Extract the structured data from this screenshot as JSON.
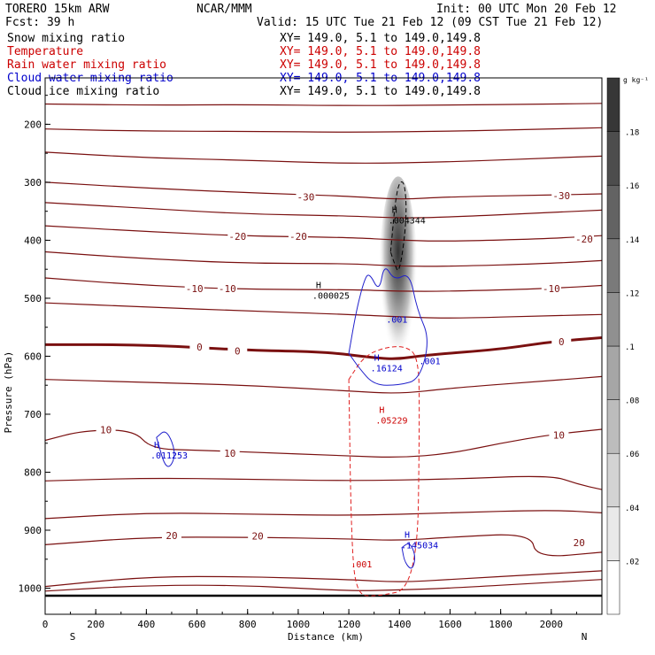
{
  "header": {
    "model": "TORERO  15km ARW",
    "center": "NCAR/MMM",
    "init": "Init: 00 UTC Mon 20 Feb 12",
    "fcst": "Fcst:   39 h",
    "valid": "Valid: 15 UTC Tue 21 Feb 12 (09 CST Tue 21 Feb 12)"
  },
  "fields": [
    {
      "name": "Snow mixing ratio",
      "color": "#000000",
      "xy": "XY= 149.0,  5.1 to 149.0,149.8"
    },
    {
      "name": "Temperature",
      "color": "#cc0000",
      "xy": "XY= 149.0,  5.1 to 149.0,149.8"
    },
    {
      "name": "Rain water mixing ratio",
      "color": "#cc0000",
      "xy": "XY= 149.0,  5.1 to 149.0,149.8"
    },
    {
      "name": "Cloud water mixing ratio",
      "color": "#0000cc",
      "xy": "XY= 149.0,  5.1 to 149.0,149.8"
    },
    {
      "name": "Cloud ice mixing ratio",
      "color": "#000000",
      "xy": "XY= 149.0,  5.1 to 149.0,149.8"
    }
  ],
  "chart_data": {
    "type": "contour",
    "xlabel": "Distance (km)",
    "ylabel": "Pressure (hPa)",
    "xlim": [
      0,
      2200
    ],
    "ylim": [
      1045,
      120
    ],
    "y_scale": "linear (pressure, inverted)",
    "x_ticks": [
      0,
      200,
      400,
      600,
      800,
      1000,
      1200,
      1400,
      1600,
      1800,
      2000
    ],
    "y_ticks": [
      200,
      300,
      400,
      500,
      600,
      700,
      800,
      900,
      1000
    ],
    "end_labels": {
      "left": "S",
      "right": "N"
    },
    "colorbar": {
      "unit": "g kg⁻¹",
      "ticks": [
        ".02",
        ".04",
        ".06",
        ".08",
        ".1",
        ".12",
        ".14",
        ".16",
        ".18"
      ],
      "levels": [
        0,
        0.02,
        0.04,
        0.06,
        0.08,
        0.1,
        0.12,
        0.14,
        0.16,
        0.18,
        0.2
      ]
    },
    "temperature_labels": [
      {
        "text": "-30",
        "x": 1030,
        "p": 325
      },
      {
        "text": "-30",
        "x": 2040,
        "p": 323
      },
      {
        "text": "-20",
        "x": 760,
        "p": 393
      },
      {
        "text": "-20",
        "x": 1000,
        "p": 393
      },
      {
        "text": "-20",
        "x": 2130,
        "p": 398
      },
      {
        "text": "-10",
        "x": 590,
        "p": 483
      },
      {
        "text": "-10",
        "x": 720,
        "p": 483
      },
      {
        "text": "-10",
        "x": 2000,
        "p": 483
      },
      {
        "text": "0",
        "x": 610,
        "p": 584
      },
      {
        "text": "0",
        "x": 760,
        "p": 591
      },
      {
        "text": "0",
        "x": 2040,
        "p": 575
      },
      {
        "text": "10",
        "x": 240,
        "p": 727
      },
      {
        "text": "10",
        "x": 730,
        "p": 767
      },
      {
        "text": "10",
        "x": 2030,
        "p": 736
      },
      {
        "text": "20",
        "x": 500,
        "p": 909
      },
      {
        "text": "20",
        "x": 840,
        "p": 910
      },
      {
        "text": "20",
        "x": 2110,
        "p": 921
      }
    ],
    "maxima_labels": [
      {
        "letter": "H",
        "value": ".004344",
        "x": 1370,
        "p": 365,
        "color": "#000000"
      },
      {
        "letter": "H",
        "value": ".000025",
        "x": 1070,
        "p": 495,
        "color": "#000000"
      },
      {
        "letter": "H",
        "value": ".16124",
        "x": 1300,
        "p": 620,
        "color": "#0000cc"
      },
      {
        "letter": "H",
        "value": ".05229",
        "x": 1320,
        "p": 710,
        "color": "#cc0000"
      },
      {
        "letter": "H",
        "value": ".011253",
        "x": 430,
        "p": 770,
        "color": "#0000cc"
      },
      {
        "letter": "H",
        "value": ".145034",
        "x": 1420,
        "p": 925,
        "color": "#0000cc"
      }
    ],
    "contour_value_labels": [
      {
        "text": ".001",
        "x": 1390,
        "p": 536,
        "color": "#0000cc"
      },
      {
        "text": ".001",
        "x": 1520,
        "p": 608,
        "color": "#0000cc"
      },
      {
        "text": ".001",
        "x": 1250,
        "p": 958,
        "color": "#cc0000"
      }
    ],
    "temperature_contours": [
      {
        "level": -50,
        "x": [
          0,
          400,
          800,
          1200,
          1600,
          2000,
          2200
        ],
        "p": [
          165,
          167,
          166,
          168,
          167,
          165,
          164
        ]
      },
      {
        "level": -40,
        "x": [
          0,
          400,
          800,
          1200,
          1600,
          2000,
          2200
        ],
        "p": [
          208,
          212,
          212,
          214,
          212,
          208,
          206
        ]
      },
      {
        "level": -35,
        "x": [
          0,
          400,
          800,
          1200,
          1600,
          2000,
          2200
        ],
        "p": [
          248,
          258,
          262,
          268,
          265,
          258,
          255
        ]
      },
      {
        "level": -30,
        "x": [
          0,
          400,
          800,
          1200,
          1400,
          1600,
          2000,
          2200
        ],
        "p": [
          300,
          310,
          318,
          324,
          330,
          325,
          322,
          320
        ]
      },
      {
        "level": -25,
        "x": [
          0,
          400,
          800,
          1200,
          1400,
          1600,
          2000,
          2200
        ],
        "p": [
          335,
          345,
          355,
          358,
          362,
          360,
          352,
          348
        ]
      },
      {
        "level": -20,
        "x": [
          0,
          400,
          800,
          1200,
          1400,
          1600,
          2000,
          2200
        ],
        "p": [
          375,
          385,
          393,
          395,
          400,
          402,
          397,
          392
        ]
      },
      {
        "level": -15,
        "x": [
          0,
          400,
          800,
          1200,
          1400,
          1600,
          2000,
          2200
        ],
        "p": [
          420,
          432,
          440,
          440,
          445,
          445,
          440,
          435
        ]
      },
      {
        "level": -10,
        "x": [
          0,
          400,
          800,
          1200,
          1400,
          1600,
          2000,
          2200
        ],
        "p": [
          465,
          478,
          485,
          485,
          488,
          488,
          483,
          478
        ]
      },
      {
        "level": -5,
        "x": [
          0,
          400,
          800,
          1200,
          1400,
          1600,
          2000,
          2200
        ],
        "p": [
          508,
          515,
          522,
          528,
          532,
          535,
          530,
          528
        ]
      },
      {
        "level": 0,
        "x": [
          0,
          400,
          800,
          1100,
          1300,
          1400,
          1500,
          1800,
          2000,
          2200
        ],
        "p": [
          580,
          580,
          590,
          592,
          603,
          605,
          598,
          588,
          575,
          568
        ]
      },
      {
        "level": 5,
        "x": [
          0,
          400,
          800,
          1200,
          1400,
          1600,
          2000,
          2200
        ],
        "p": [
          640,
          645,
          650,
          660,
          665,
          655,
          642,
          635
        ]
      },
      {
        "level": 10,
        "x": [
          0,
          150,
          350,
          420,
          600,
          800,
          1200,
          1400,
          1600,
          1800,
          2000,
          2200
        ],
        "p": [
          745,
          728,
          727,
          760,
          762,
          765,
          772,
          775,
          768,
          750,
          735,
          726
        ]
      },
      {
        "level": 12,
        "x": [
          0,
          400,
          800,
          1200,
          1600,
          2000,
          2100,
          2200
        ],
        "p": [
          815,
          810,
          812,
          815,
          812,
          805,
          820,
          830
        ]
      },
      {
        "level": 15,
        "x": [
          0,
          400,
          800,
          1200,
          1600,
          2000,
          2200
        ],
        "p": [
          880,
          870,
          872,
          875,
          870,
          865,
          870
        ]
      },
      {
        "level": 20,
        "x": [
          0,
          400,
          800,
          1200,
          1400,
          1600,
          1920,
          1940,
          2200
        ],
        "p": [
          925,
          912,
          912,
          915,
          918,
          912,
          905,
          948,
          938
        ]
      },
      {
        "level": 25,
        "x": [
          0,
          400,
          800,
          1200,
          1400,
          1600,
          2000,
          2200
        ],
        "p": [
          997,
          980,
          980,
          985,
          990,
          985,
          975,
          970
        ]
      },
      {
        "level": 28,
        "x": [
          0,
          400,
          800,
          1200,
          1400,
          1600,
          2000,
          2200
        ],
        "p": [
          1005,
          995,
          995,
          1005,
          1003,
          1000,
          990,
          985
        ]
      }
    ],
    "surface": {
      "x": [
        0,
        2200
      ],
      "p": [
        1013,
        1013
      ]
    },
    "snow_field": {
      "x_center": 1395,
      "p_top": 290,
      "p_bottom": 660,
      "peak": 0.2
    },
    "snow_contour": {
      "x": [
        1365,
        1390,
        1420,
        1430,
        1400,
        1380,
        1365
      ],
      "p": [
        420,
        305,
        295,
        360,
        460,
        440,
        420
      ]
    },
    "rain_contour": {
      "x": [
        1200,
        1260,
        1340,
        1420,
        1475,
        1480,
        1470,
        1300,
        1230,
        1210,
        1200
      ],
      "p": [
        640,
        600,
        585,
        582,
        600,
        700,
        1000,
        1015,
        1010,
        920,
        640
      ]
    },
    "cloud_water_contours": [
      {
        "x": [
          1200,
          1230,
          1260,
          1280,
          1320,
          1340,
          1380,
          1440,
          1470,
          1520,
          1480,
          1400,
          1300,
          1240,
          1200
        ],
        "p": [
          595,
          520,
          470,
          455,
          490,
          440,
          470,
          455,
          520,
          570,
          640,
          650,
          650,
          620,
          595
        ]
      },
      {
        "x": [
          440,
          480,
          520,
          480,
          440
        ],
        "p": [
          740,
          725,
          770,
          800,
          740
        ]
      },
      {
        "x": [
          1410,
          1440,
          1465,
          1450,
          1420,
          1410
        ],
        "p": [
          930,
          920,
          945,
          970,
          955,
          930
        ]
      }
    ]
  }
}
